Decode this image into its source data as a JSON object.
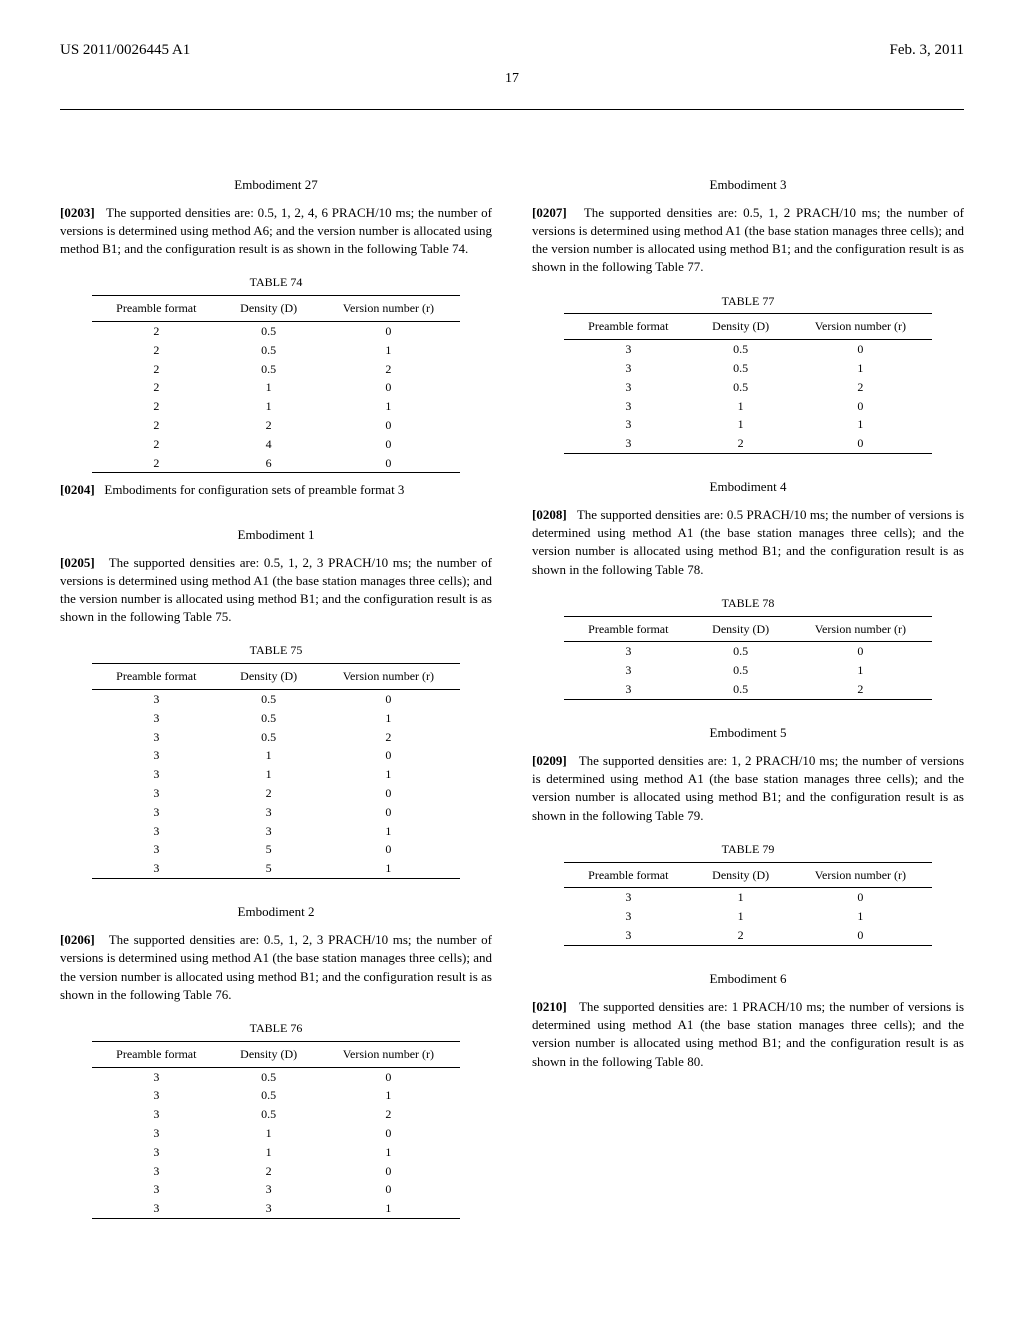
{
  "header": {
    "left": "US 2011/0026445 A1",
    "right": "Feb. 3, 2011",
    "page_number": "17"
  },
  "left_column": {
    "emb27": {
      "title": "Embodiment 27",
      "para_num": "[0203]",
      "para_text": "The supported densities are: 0.5, 1, 2, 4, 6 PRACH/10 ms; the number of versions is determined using method A6; and the version number is allocated using method B1; and the configuration result is as shown in the following Table 74."
    },
    "table74": {
      "label": "TABLE 74",
      "cols": [
        "Preamble format",
        "Density (D)",
        "Version number (r)"
      ],
      "rows": [
        [
          "2",
          "0.5",
          "0"
        ],
        [
          "2",
          "0.5",
          "1"
        ],
        [
          "2",
          "0.5",
          "2"
        ],
        [
          "2",
          "1",
          "0"
        ],
        [
          "2",
          "1",
          "1"
        ],
        [
          "2",
          "2",
          "0"
        ],
        [
          "2",
          "4",
          "0"
        ],
        [
          "2",
          "6",
          "0"
        ]
      ]
    },
    "para204": {
      "para_num": "[0204]",
      "para_text": "Embodiments for configuration sets of preamble format 3"
    },
    "emb1": {
      "title": "Embodiment 1",
      "para_num": "[0205]",
      "para_text": "The supported densities are: 0.5, 1, 2, 3 PRACH/10 ms; the number of versions is determined using method A1 (the base station manages three cells); and the version number is allocated using method B1; and the configuration result is as shown in the following Table 75."
    },
    "table75": {
      "label": "TABLE 75",
      "cols": [
        "Preamble format",
        "Density (D)",
        "Version number (r)"
      ],
      "rows": [
        [
          "3",
          "0.5",
          "0"
        ],
        [
          "3",
          "0.5",
          "1"
        ],
        [
          "3",
          "0.5",
          "2"
        ],
        [
          "3",
          "1",
          "0"
        ],
        [
          "3",
          "1",
          "1"
        ],
        [
          "3",
          "2",
          "0"
        ],
        [
          "3",
          "3",
          "0"
        ],
        [
          "3",
          "3",
          "1"
        ],
        [
          "3",
          "5",
          "0"
        ],
        [
          "3",
          "5",
          "1"
        ]
      ]
    },
    "emb2": {
      "title": "Embodiment 2",
      "para_num": "[0206]",
      "para_text": "The supported densities are: 0.5, 1, 2, 3 PRACH/10 ms; the number of versions is determined using method A1 (the base station manages three cells); and the version number is allocated using method B1; and the configuration result is as shown in the following Table 76."
    },
    "table76": {
      "label": "TABLE 76",
      "cols": [
        "Preamble format",
        "Density (D)",
        "Version number (r)"
      ],
      "rows": [
        [
          "3",
          "0.5",
          "0"
        ],
        [
          "3",
          "0.5",
          "1"
        ],
        [
          "3",
          "0.5",
          "2"
        ],
        [
          "3",
          "1",
          "0"
        ],
        [
          "3",
          "1",
          "1"
        ],
        [
          "3",
          "2",
          "0"
        ],
        [
          "3",
          "3",
          "0"
        ],
        [
          "3",
          "3",
          "1"
        ]
      ]
    }
  },
  "right_column": {
    "emb3": {
      "title": "Embodiment 3",
      "para_num": "[0207]",
      "para_text": "The supported densities are: 0.5, 1, 2 PRACH/10 ms; the number of versions is determined using method A1 (the base station manages three cells); and the version number is allocated using method B1; and the configuration result is as shown in the following Table 77."
    },
    "table77": {
      "label": "TABLE 77",
      "cols": [
        "Preamble format",
        "Density (D)",
        "Version number (r)"
      ],
      "rows": [
        [
          "3",
          "0.5",
          "0"
        ],
        [
          "3",
          "0.5",
          "1"
        ],
        [
          "3",
          "0.5",
          "2"
        ],
        [
          "3",
          "1",
          "0"
        ],
        [
          "3",
          "1",
          "1"
        ],
        [
          "3",
          "2",
          "0"
        ]
      ]
    },
    "emb4": {
      "title": "Embodiment 4",
      "para_num": "[0208]",
      "para_text": "The supported densities are: 0.5 PRACH/10 ms; the number of versions is determined using method A1 (the base station manages three cells); and the version number is allocated using method B1; and the configuration result is as shown in the following Table 78."
    },
    "table78": {
      "label": "TABLE 78",
      "cols": [
        "Preamble format",
        "Density (D)",
        "Version number (r)"
      ],
      "rows": [
        [
          "3",
          "0.5",
          "0"
        ],
        [
          "3",
          "0.5",
          "1"
        ],
        [
          "3",
          "0.5",
          "2"
        ]
      ]
    },
    "emb5": {
      "title": "Embodiment 5",
      "para_num": "[0209]",
      "para_text": "The supported densities are: 1, 2 PRACH/10 ms; the number of versions is determined using method A1 (the base station manages three cells); and the version number is allocated using method B1; and the configuration result is as shown in the following Table 79."
    },
    "table79": {
      "label": "TABLE 79",
      "cols": [
        "Preamble format",
        "Density (D)",
        "Version number (r)"
      ],
      "rows": [
        [
          "3",
          "1",
          "0"
        ],
        [
          "3",
          "1",
          "1"
        ],
        [
          "3",
          "2",
          "0"
        ]
      ]
    },
    "emb6": {
      "title": "Embodiment 6",
      "para_num": "[0210]",
      "para_text": "The supported densities are: 1 PRACH/10 ms; the number of versions is determined using method A1 (the base station manages three cells); and the version number is allocated using method B1; and the configuration result is as shown in the following Table 80."
    }
  }
}
